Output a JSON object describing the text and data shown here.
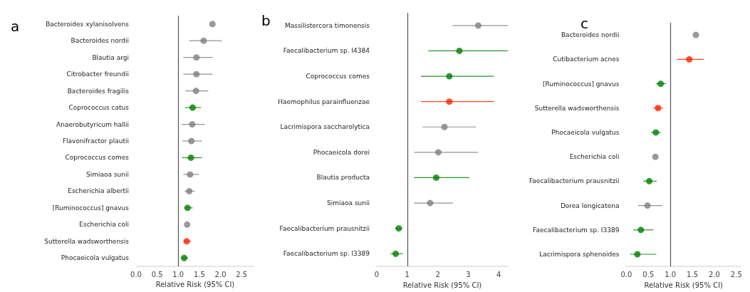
{
  "chart_data": [
    {
      "type": "scatter",
      "title": "a",
      "xlabel": "Relative Risk (95% CI)",
      "orientation": "horizontal",
      "marker": "circle",
      "grid": false,
      "categories": [
        "Bacteroides xylanisolvens",
        "Bacteroides nordii",
        "Blautia argi",
        "Citrobacter freundii",
        "Bacteroides fragilis",
        "Coprococcus catus",
        "Anaerobutyricum hallii",
        "Flavonifractor plautii",
        "Coprococcus comes",
        "Simiaoa sunii",
        "Escherichia albertii",
        "[Ruminococcus] gnavus",
        "Escherichia coli",
        "Sutterella wadsworthensis",
        "Phocaeicola vulgatus"
      ],
      "values": [
        1.81,
        1.6,
        1.43,
        1.43,
        1.42,
        1.34,
        1.33,
        1.31,
        1.3,
        1.28,
        1.26,
        1.22,
        1.21,
        1.2,
        1.14
      ],
      "errors": [
        null,
        [
          1.26,
          2.03
        ],
        [
          1.12,
          1.81
        ],
        [
          1.12,
          1.81
        ],
        [
          1.17,
          1.71
        ],
        [
          1.16,
          1.54
        ],
        [
          1.08,
          1.63
        ],
        [
          1.1,
          1.56
        ],
        [
          1.09,
          1.56
        ],
        [
          1.12,
          1.49
        ],
        [
          1.15,
          1.39
        ],
        [
          1.14,
          1.34
        ],
        null,
        [
          1.12,
          1.3
        ],
        [
          1.06,
          1.23
        ]
      ],
      "colors": [
        "#808080",
        "#808080",
        "#808080",
        "#808080",
        "#808080",
        "#008000",
        "#808080",
        "#808080",
        "#008000",
        "#808080",
        "#808080",
        "#008000",
        "#808080",
        "#ff2200",
        "#008000"
      ],
      "xlim": [
        0,
        2.8
      ],
      "xticks": [
        {
          "value": 0,
          "label": "0.0"
        },
        {
          "value": 0.5,
          "label": "0.5"
        },
        {
          "value": 1,
          "label": "1.0"
        },
        {
          "value": 1.5,
          "label": "1.5"
        },
        {
          "value": 2,
          "label": "2.0"
        },
        {
          "value": 2.5,
          "label": "2.5"
        }
      ],
      "ref_lines": [
        {
          "axis": "x",
          "value": 1,
          "color": "#555555"
        }
      ]
    },
    {
      "type": "scatter",
      "title": "b",
      "xlabel": "Relative Risk (95% CI)",
      "orientation": "horizontal",
      "marker": "circle",
      "grid": false,
      "categories": [
        "Massilistercora timonensis",
        "Faecalibacterium sp. I4384",
        "Coprococcus comes",
        "Haemophilus parainfluenzae",
        "Lacrimispora saccharolytica",
        "Phocaeicola dorei",
        "Blautia producta",
        "Simiaoa sunii",
        "Faecalibacterium prausnitzii",
        "Faecalibacterium sp. I3389"
      ],
      "values": [
        3.33,
        2.71,
        2.38,
        2.38,
        2.22,
        2.02,
        1.95,
        1.75,
        0.72,
        0.62
      ],
      "errors": [
        [
          2.48,
          4.3
        ],
        [
          1.69,
          4.3
        ],
        [
          1.45,
          3.84
        ],
        [
          1.45,
          3.84
        ],
        [
          1.5,
          3.26
        ],
        [
          1.23,
          3.33
        ],
        [
          1.22,
          3.04
        ],
        [
          1.22,
          2.5
        ],
        [
          0.6,
          0.84
        ],
        [
          0.45,
          0.85
        ]
      ],
      "colors": [
        "#808080",
        "#008000",
        "#008000",
        "#ff2200",
        "#808080",
        "#808080",
        "#008000",
        "#808080",
        "#008000",
        "#008000"
      ],
      "xlim": [
        0,
        4.3
      ],
      "xticks": [
        0,
        1,
        2,
        3,
        4
      ],
      "ref_lines": [
        {
          "axis": "x",
          "value": 1,
          "color": "#555555"
        }
      ]
    },
    {
      "type": "scatter",
      "title": "c",
      "xlabel": "Relative Risk (95% CI)",
      "orientation": "horizontal",
      "marker": "circle",
      "grid": false,
      "categories": [
        "Bacteroides nordii",
        "Cutibacterium acnes",
        "[Ruminococcus] gnavus",
        "Sutterella wadsworthensis",
        "Phocaeicola vulgatus",
        "Escherichia coli",
        "Faecalibacterium prausnitzii",
        "Dorea longicatena",
        "Faecalibacterium sp. I3389",
        "Lacrimispora sphenoides"
      ],
      "values": [
        1.58,
        1.43,
        0.78,
        0.72,
        0.67,
        0.66,
        0.52,
        0.48,
        0.33,
        0.25
      ],
      "errors": [
        null,
        [
          1.15,
          1.76
        ],
        [
          0.67,
          0.9
        ],
        [
          0.61,
          0.83
        ],
        [
          0.56,
          0.78
        ],
        null,
        [
          0.38,
          0.69
        ],
        [
          0.27,
          0.82
        ],
        [
          0.16,
          0.61
        ],
        [
          0.08,
          0.68
        ]
      ],
      "colors": [
        "#808080",
        "#ff2200",
        "#008000",
        "#ff2200",
        "#008000",
        "#808080",
        "#008000",
        "#808080",
        "#008000",
        "#008000"
      ],
      "xlim": [
        0,
        2.6
      ],
      "xticks": [
        {
          "value": 0,
          "label": "0.0"
        },
        {
          "value": 0.5,
          "label": "0.5"
        },
        {
          "value": 1,
          "label": "1.0"
        },
        {
          "value": 1.5,
          "label": "1.5"
        },
        {
          "value": 2,
          "label": "2.0"
        },
        {
          "value": 2.5,
          "label": "2.5"
        }
      ],
      "ref_lines": [
        {
          "axis": "x",
          "value": 1,
          "color": "#555555"
        }
      ]
    }
  ]
}
